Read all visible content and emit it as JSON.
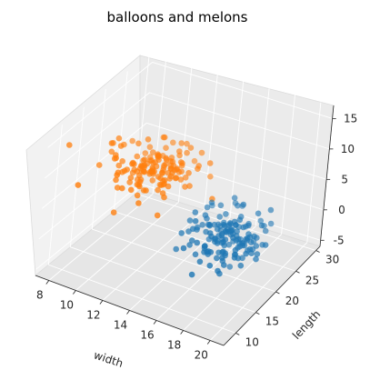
{
  "chart_data": {
    "type": "scatter",
    "projection": "3d",
    "title": "balloons and melons",
    "xlabel": "width",
    "ylabel": "length",
    "zlabel": "",
    "xlim": [
      7,
      21
    ],
    "ylim": [
      7,
      31
    ],
    "zlim": [
      -6,
      17
    ],
    "x_ticks": [
      8,
      10,
      12,
      14,
      16,
      18,
      20
    ],
    "y_ticks": [
      10,
      15,
      20,
      25,
      30
    ],
    "z_ticks": [
      -5,
      0,
      5,
      10,
      15
    ],
    "grid": true,
    "legend": false,
    "series": [
      {
        "color": "#1f77b4",
        "cluster": {
          "x_mean": 17.0,
          "x_sd": 1.4,
          "y_mean": 20.0,
          "y_sd": 2.6,
          "z_mean": 0.0,
          "z_sd": 1.6,
          "count": 150
        }
      },
      {
        "color": "#ff7f0e",
        "cluster": {
          "x_mean": 11.0,
          "x_sd": 1.5,
          "y_mean": 20.0,
          "y_sd": 2.6,
          "z_mean": 7.0,
          "z_sd": 1.6,
          "count": 150
        }
      }
    ]
  }
}
